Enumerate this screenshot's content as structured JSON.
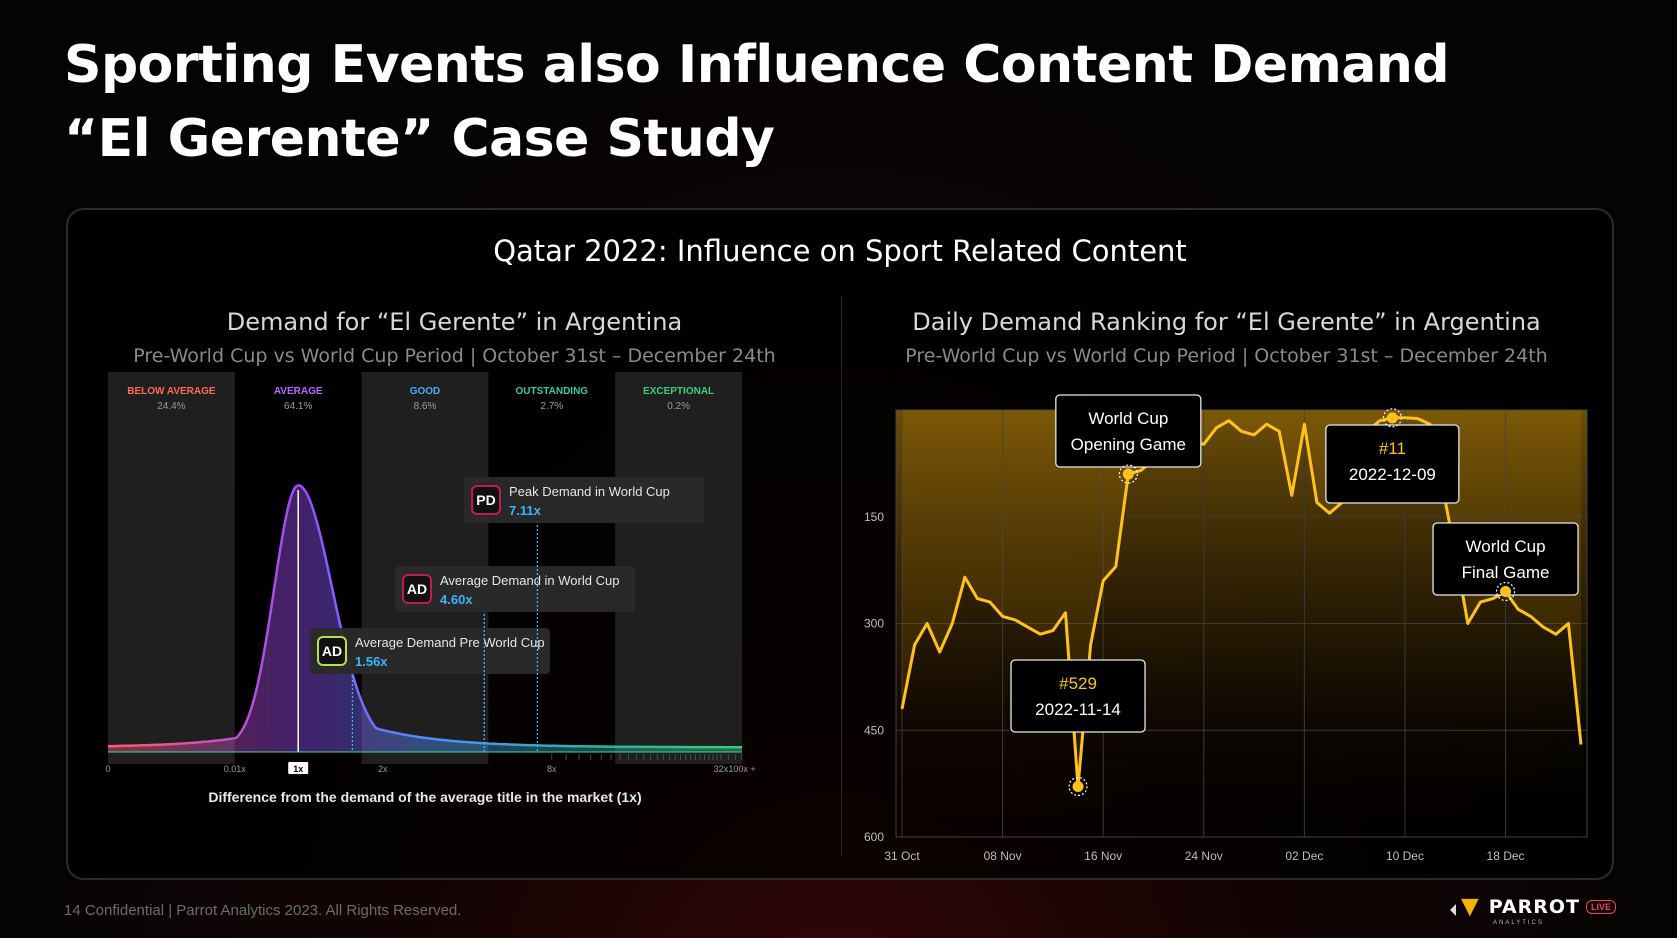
{
  "page": {
    "title_line1": "Sporting Events also Influence Content Demand",
    "title_line2": "“El Gerente” Case Study",
    "panel_title": "Qatar 2022: Influence on Sport Related Content",
    "footer": "14  Confidential  |  Parrot Analytics 2023. All Rights Reserved.",
    "logo_text": "PARROT",
    "logo_sub": "ANALYTICS",
    "logo_badge": "LIVE"
  },
  "chart_data": [
    {
      "type": "area",
      "title": "Demand for “El Gerente” in Argentina",
      "subtitle": "Pre-World Cup vs World Cup Period  |  October 31st – December 24th",
      "xlabel": "Difference from the demand of the average title in the market (1x)",
      "x_ticks": [
        "0",
        "0.01x",
        "1x",
        "2x",
        "8x",
        "32x",
        "100x +"
      ],
      "bands": [
        {
          "name": "BELOW AVERAGE",
          "share": "24.4%",
          "color": "#ff6a55"
        },
        {
          "name": "AVERAGE",
          "share": "64.1%",
          "color": "#b36bff"
        },
        {
          "name": "GOOD",
          "share": "8.6%",
          "color": "#4aa8ff"
        },
        {
          "name": "OUTSTANDING",
          "share": "2.7%",
          "color": "#33c9b4"
        },
        {
          "name": "EXCEPTIONAL",
          "share": "0.2%",
          "color": "#3ccf7a"
        }
      ],
      "markers": [
        {
          "badge": "AD",
          "label": "Average Demand Pre World Cup",
          "value": "1.56x",
          "x": 1.56,
          "badge_color": "#b8e04a"
        },
        {
          "badge": "AD",
          "label": "Average Demand in World Cup",
          "value": "4.60x",
          "x": 4.6,
          "badge_color": "#c2185b"
        },
        {
          "badge": "PD",
          "label": "Peak Demand in World Cup",
          "value": "7.11x",
          "x": 7.11,
          "badge_color": "#c2185b"
        }
      ],
      "accent": "#3ab4ff"
    },
    {
      "type": "line",
      "title": "Daily Demand Ranking for “El Gerente” in Argentina",
      "subtitle": "Pre-World Cup vs World Cup Period  |  October 31st – December 24th",
      "x_ticks": [
        "31 Oct",
        "08 Nov",
        "16 Nov",
        "24 Nov",
        "02 Dec",
        "10 Dec",
        "18 Dec"
      ],
      "y_ticks": [
        "150",
        "300",
        "450",
        "600"
      ],
      "ylim": [
        0,
        600
      ],
      "y_inverted": true,
      "x": [
        "2022-10-31",
        "2022-11-01",
        "2022-11-02",
        "2022-11-03",
        "2022-11-04",
        "2022-11-05",
        "2022-11-06",
        "2022-11-07",
        "2022-11-08",
        "2022-11-09",
        "2022-11-10",
        "2022-11-11",
        "2022-11-12",
        "2022-11-13",
        "2022-11-14",
        "2022-11-15",
        "2022-11-16",
        "2022-11-17",
        "2022-11-18",
        "2022-11-19",
        "2022-11-20",
        "2022-11-21",
        "2022-11-22",
        "2022-11-23",
        "2022-11-24",
        "2022-11-25",
        "2022-11-26",
        "2022-11-27",
        "2022-11-28",
        "2022-11-29",
        "2022-11-30",
        "2022-12-01",
        "2022-12-02",
        "2022-12-03",
        "2022-12-04",
        "2022-12-05",
        "2022-12-06",
        "2022-12-07",
        "2022-12-08",
        "2022-12-09",
        "2022-12-10",
        "2022-12-11",
        "2022-12-12",
        "2022-12-13",
        "2022-12-14",
        "2022-12-15",
        "2022-12-16",
        "2022-12-17",
        "2022-12-18",
        "2022-12-19",
        "2022-12-20",
        "2022-12-21",
        "2022-12-22",
        "2022-12-23",
        "2022-12-24"
      ],
      "values": [
        420,
        330,
        300,
        340,
        300,
        235,
        265,
        270,
        290,
        295,
        305,
        315,
        310,
        285,
        529,
        330,
        240,
        220,
        90,
        85,
        70,
        60,
        50,
        45,
        48,
        25,
        15,
        30,
        35,
        20,
        30,
        120,
        20,
        130,
        145,
        130,
        65,
        30,
        15,
        11,
        11,
        12,
        20,
        110,
        200,
        300,
        270,
        265,
        255,
        280,
        290,
        305,
        315,
        300,
        470
      ],
      "series_color": "#ffc21a",
      "annotations": [
        {
          "text_lines": [
            "World Cup",
            "Opening Game"
          ],
          "date": "2022-11-18"
        },
        {
          "text_lines": [
            "#529",
            "2022-11-14"
          ],
          "date": "2022-11-14"
        },
        {
          "text_lines": [
            "#11",
            "2022-12-09"
          ],
          "date": "2022-12-09"
        },
        {
          "text_lines": [
            "World Cup",
            "Final Game"
          ],
          "date": "2022-12-18"
        }
      ]
    }
  ]
}
